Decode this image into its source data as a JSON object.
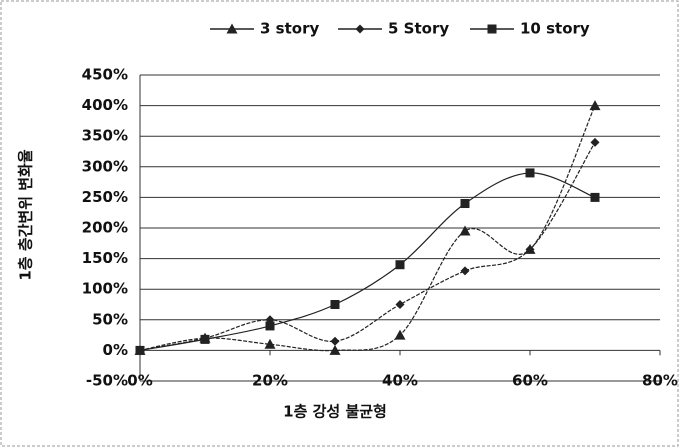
{
  "chart_data": {
    "type": "line",
    "xlabel": "1층 강성 불균형",
    "ylabel": "1층 층간변위 변화율",
    "x": [
      0,
      10,
      20,
      30,
      40,
      50,
      60,
      70
    ],
    "series": [
      {
        "name": "3 story",
        "color": "#222222",
        "marker": "triangle",
        "values": [
          0,
          20,
          10,
          0,
          25,
          195,
          165,
          400
        ]
      },
      {
        "name": "5 Story",
        "color": "#222222",
        "marker": "diamond",
        "values": [
          0,
          20,
          50,
          15,
          75,
          130,
          165,
          340
        ]
      },
      {
        "name": "10 story",
        "color": "#222222",
        "marker": "square",
        "values": [
          0,
          18,
          40,
          75,
          140,
          240,
          290,
          250
        ]
      }
    ],
    "xlim": [
      0,
      80
    ],
    "xticks": [
      {
        "value": 0,
        "label": "0%"
      },
      {
        "value": 20,
        "label": "20%"
      },
      {
        "value": 40,
        "label": "40%"
      },
      {
        "value": 60,
        "label": "60%"
      },
      {
        "value": 80,
        "label": "80%"
      }
    ],
    "ylim": [
      -50,
      450
    ],
    "yticks": [
      {
        "value": -50,
        "label": "-50%"
      },
      {
        "value": 0,
        "label": "0%"
      },
      {
        "value": 50,
        "label": "50%"
      },
      {
        "value": 100,
        "label": "100%"
      },
      {
        "value": 150,
        "label": "150%"
      },
      {
        "value": 200,
        "label": "200%"
      },
      {
        "value": 250,
        "label": "250%"
      },
      {
        "value": 300,
        "label": "300%"
      },
      {
        "value": 350,
        "label": "350%"
      },
      {
        "value": 400,
        "label": "400%"
      },
      {
        "value": 450,
        "label": "450%"
      }
    ],
    "grid": true,
    "legend": "top"
  }
}
